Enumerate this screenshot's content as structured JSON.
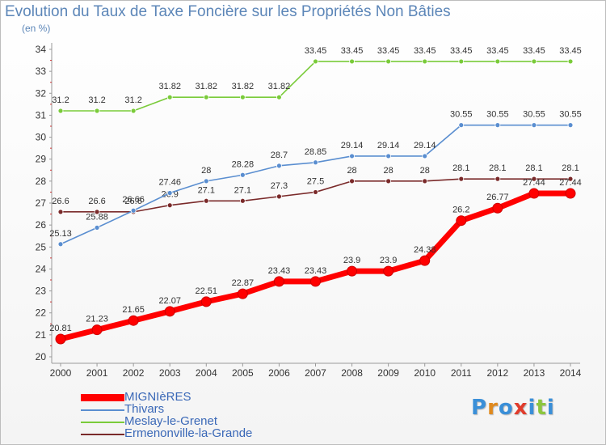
{
  "title": "Evolution du Taux de Taxe Foncière sur les Propriétés Non Bâties",
  "unit_label": "(en %)",
  "brand": {
    "letters": [
      "P",
      "r",
      "o",
      "x",
      "i",
      "t",
      "i"
    ],
    "colors": [
      "#3a8fd8",
      "#e08a1e",
      "#3a8fd8",
      "#e03c2c",
      "#3a8fd8",
      "#8cc63e",
      "#3a8fd8"
    ]
  },
  "chart_data": {
    "type": "line",
    "x": [
      "2000",
      "2001",
      "2002",
      "2003",
      "2004",
      "2005",
      "2006",
      "2007",
      "2008",
      "2009",
      "2010",
      "2011",
      "2012",
      "2013",
      "2014"
    ],
    "yticks": [
      "20",
      "21",
      "22",
      "23",
      "24",
      "25",
      "26",
      "27",
      "28",
      "29",
      "30",
      "31",
      "32",
      "33",
      "34"
    ],
    "ylim": [
      20,
      34
    ],
    "grid": false,
    "legend_position": "bottom-left",
    "series": [
      {
        "name": "MIGNIèRES",
        "color": "#ff0000",
        "values": [
          20.81,
          21.23,
          21.65,
          22.07,
          22.51,
          22.87,
          23.43,
          23.43,
          23.9,
          23.9,
          24.38,
          26.2,
          26.77,
          27.44,
          27.44
        ],
        "labels": [
          "20.81",
          "21.23",
          "21.65",
          "22.07",
          "22.51",
          "22.87",
          "23.43",
          "23.43",
          "23.9",
          "23.9",
          "24.38",
          "26.2",
          "26.77",
          "27.44",
          "27.44"
        ]
      },
      {
        "name": "Thivars",
        "color": "#5a8ed0",
        "values": [
          25.13,
          25.88,
          26.66,
          27.46,
          28,
          28.28,
          28.7,
          28.85,
          29.14,
          29.14,
          29.14,
          30.55,
          30.55,
          30.55,
          30.55
        ],
        "labels": [
          "25.13",
          "25.88",
          "26.66",
          "27.46",
          "28",
          "28.28",
          "28.7",
          "28.85",
          "29.14",
          "29.14",
          "29.14",
          "30.55",
          "30.55",
          "30.55",
          "30.55"
        ]
      },
      {
        "name": "Meslay-le-Grenet",
        "color": "#7acb3a",
        "values": [
          31.2,
          31.2,
          31.2,
          31.82,
          31.82,
          31.82,
          31.82,
          33.45,
          33.45,
          33.45,
          33.45,
          33.45,
          33.45,
          33.45,
          33.45
        ],
        "labels": [
          "31.2",
          "31.2",
          "31.2",
          "31.82",
          "31.82",
          "31.82",
          "31.82",
          "33.45",
          "33.45",
          "33.45",
          "33.45",
          "33.45",
          "33.45",
          "33.45",
          "33.45"
        ]
      },
      {
        "name": "Ermenonville-la-Grande",
        "color": "#7a2a2a",
        "values": [
          26.6,
          26.6,
          26.6,
          26.9,
          27.1,
          27.1,
          27.3,
          27.5,
          28,
          28,
          28,
          28.1,
          28.1,
          28.1,
          28.1
        ],
        "labels": [
          "26.6",
          "26.6",
          "26.6",
          "26.9",
          "27.1",
          "27.1",
          "27.3",
          "27.5",
          "28",
          "28",
          "28",
          "28.1",
          "28.1",
          "28.1",
          "28.1"
        ]
      }
    ]
  }
}
